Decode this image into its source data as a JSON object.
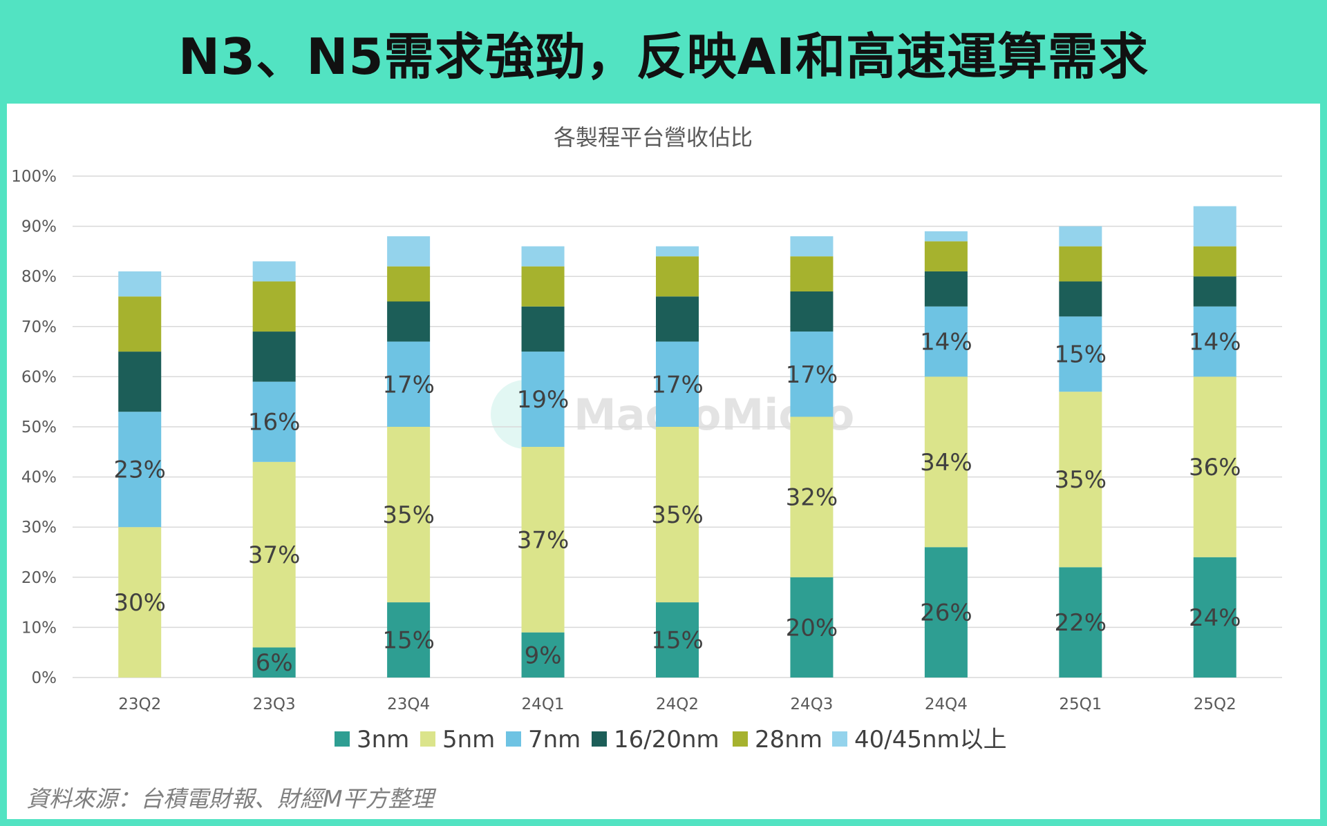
{
  "banner": {
    "title": "N3、N5需求強勁，反映AI和高速運算需求"
  },
  "source": "資料來源：台積電財報、財經M平方整理",
  "watermark": "MacroMicro",
  "colors": {
    "3nm": "#2e9e92",
    "5nm": "#dbe48b",
    "7nm": "#6ec3e3",
    "16/20nm": "#1c5e58",
    "28nm": "#a6b22e",
    "40/45nm以上": "#94d3ec",
    "grid": "#d9d9d9"
  },
  "chart_data": {
    "type": "bar",
    "stacked": true,
    "title": "各製程平台營收佔比",
    "categories": [
      "23Q2",
      "23Q3",
      "23Q4",
      "24Q1",
      "24Q2",
      "24Q3",
      "24Q4",
      "25Q1",
      "25Q2"
    ],
    "y_ticks": [
      "0%",
      "10%",
      "20%",
      "30%",
      "40%",
      "50%",
      "60%",
      "70%",
      "80%",
      "90%",
      "100%"
    ],
    "ylim": [
      0,
      100
    ],
    "grid": true,
    "legend_position": "bottom",
    "series": [
      {
        "name": "3nm",
        "values": [
          0,
          6,
          15,
          9,
          15,
          20,
          26,
          22,
          24
        ],
        "labels": [
          "",
          "6%",
          "15%",
          "9%",
          "15%",
          "20%",
          "26%",
          "22%",
          "24%"
        ]
      },
      {
        "name": "5nm",
        "values": [
          30,
          37,
          35,
          37,
          35,
          32,
          34,
          35,
          36
        ],
        "labels": [
          "30%",
          "37%",
          "35%",
          "37%",
          "35%",
          "32%",
          "34%",
          "35%",
          "36%"
        ]
      },
      {
        "name": "7nm",
        "values": [
          23,
          16,
          17,
          19,
          17,
          17,
          14,
          15,
          14
        ],
        "labels": [
          "23%",
          "16%",
          "17%",
          "19%",
          "17%",
          "17%",
          "14%",
          "15%",
          "14%"
        ]
      },
      {
        "name": "16/20nm",
        "values": [
          12,
          10,
          8,
          9,
          9,
          8,
          7,
          7,
          6
        ],
        "labels": [
          "",
          "",
          "",
          "",
          "",
          "",
          "",
          "",
          ""
        ]
      },
      {
        "name": "28nm",
        "values": [
          11,
          10,
          7,
          8,
          8,
          7,
          6,
          7,
          6
        ],
        "labels": [
          "",
          "",
          "",
          "",
          "",
          "",
          "",
          "",
          ""
        ]
      },
      {
        "name": "40/45nm以上",
        "values": [
          5,
          4,
          6,
          4,
          2,
          4,
          2,
          4,
          8
        ],
        "labels": [
          "",
          "",
          "",
          "",
          "",
          "",
          "",
          "",
          ""
        ]
      }
    ]
  }
}
